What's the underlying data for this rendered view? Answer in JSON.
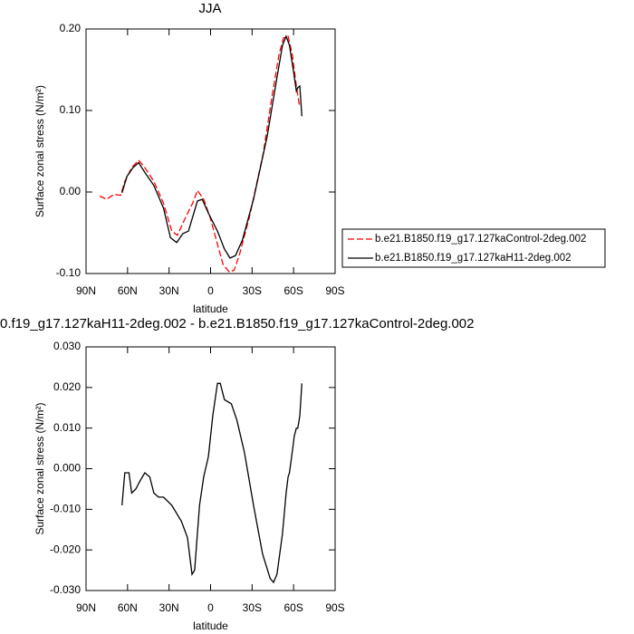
{
  "chart_data": [
    {
      "type": "line",
      "title": "JJA",
      "xlabel": "latitude",
      "ylabel": "Surface zonal stress (N/m²)",
      "xlim": [
        90,
        -90
      ],
      "xticks": [
        {
          "value": 90,
          "label": "90N"
        },
        {
          "value": 60,
          "label": "60N"
        },
        {
          "value": 30,
          "label": "30N"
        },
        0,
        {
          "value": -30,
          "label": "30S"
        },
        {
          "value": -60,
          "label": "60S"
        },
        {
          "value": -90,
          "label": "90S"
        }
      ],
      "ylim": [
        -0.1,
        0.2
      ],
      "yticks": [
        {
          "value": -0.1,
          "label": "-0.10"
        },
        {
          "value": 0,
          "label": "0.00"
        },
        {
          "value": 0.1,
          "label": "0.10"
        },
        {
          "value": 0.2,
          "label": "0.20"
        }
      ],
      "legend": "right",
      "series": [
        {
          "name": "b.e21.B1850.f19_g17.127kaControl-2deg.002",
          "color": "#ff0000",
          "linestyle": "dashed",
          "x": [
            80.2,
            75,
            70,
            65,
            62,
            57,
            52,
            47.5,
            41,
            34,
            28,
            24,
            18,
            13,
            9.5,
            5,
            0.3,
            -5,
            -9,
            -13.5,
            -17,
            -21,
            -28,
            -38,
            -44,
            -49.5,
            -52.7,
            -56,
            -59,
            -62,
            -64,
            -66
          ],
          "values": [
            -0.005,
            -0.009,
            -0.003,
            -0.004,
            0.013,
            0.03,
            0.039,
            0.03,
            0.013,
            -0.014,
            -0.048,
            -0.053,
            -0.031,
            -0.014,
            0.002,
            -0.009,
            -0.031,
            -0.064,
            -0.089,
            -0.098,
            -0.096,
            -0.076,
            -0.031,
            0.047,
            0.113,
            0.169,
            0.189,
            0.191,
            0.169,
            0.13,
            0.108,
            0.108
          ]
        },
        {
          "name": "b.e21.B1850.f19_g17.127kaH11-2deg.002",
          "color": "#000000",
          "linestyle": "solid",
          "x": [
            64,
            60.5,
            56,
            52,
            47.5,
            41,
            34,
            29,
            24.5,
            20,
            16,
            13,
            9.5,
            6,
            1.6,
            -5,
            -10,
            -14,
            -18,
            -23,
            -31,
            -41,
            -47.5,
            -52,
            -54.6,
            -57,
            -60,
            -62,
            -63,
            -64.5,
            -66
          ],
          "values": [
            -0.001,
            0.019,
            0.03,
            0.036,
            0.024,
            0.008,
            -0.02,
            -0.056,
            -0.062,
            -0.051,
            -0.048,
            -0.031,
            -0.011,
            -0.009,
            -0.026,
            -0.048,
            -0.07,
            -0.081,
            -0.078,
            -0.059,
            -0.009,
            0.069,
            0.136,
            0.18,
            0.191,
            0.18,
            0.147,
            0.124,
            0.128,
            0.13,
            0.093
          ]
        }
      ]
    },
    {
      "type": "line",
      "title": "0.f19_g17.127kaH11-2deg.002 - b.e21.B1850.f19_g17.127kaControl-2deg.002",
      "xlabel": "latitude",
      "ylabel": "Surface zonal stress (N/m²)",
      "xlim": [
        90,
        -90
      ],
      "xticks": [
        {
          "value": 90,
          "label": "90N"
        },
        {
          "value": 60,
          "label": "60N"
        },
        {
          "value": 30,
          "label": "30N"
        },
        0,
        {
          "value": -30,
          "label": "30S"
        },
        {
          "value": -60,
          "label": "60S"
        },
        {
          "value": -90,
          "label": "90S"
        }
      ],
      "ylim": [
        -0.03,
        0.03
      ],
      "yticks": [
        {
          "value": -0.03,
          "label": "-0.030"
        },
        {
          "value": -0.02,
          "label": "-0.020"
        },
        {
          "value": -0.01,
          "label": "-0.010"
        },
        {
          "value": 0,
          "label": "0.000"
        },
        {
          "value": 0.01,
          "label": "0.010"
        },
        {
          "value": 0.02,
          "label": "0.020"
        },
        {
          "value": 0.03,
          "label": "0.030"
        }
      ],
      "series": [
        {
          "color": "#000000",
          "linestyle": "solid",
          "x": [
            64,
            62,
            59,
            57,
            54,
            51,
            47.5,
            44,
            41,
            37.6,
            34,
            28,
            21,
            16.7,
            13.4,
            11.5,
            8,
            5,
            1.6,
            -1.6,
            -5,
            -7,
            -10,
            -15,
            -19,
            -24.5,
            -31,
            -37.6,
            -43,
            -45.5,
            -48,
            -52,
            -54.6,
            -56,
            -57,
            -59,
            -60.5,
            -62,
            -63,
            -64.5,
            -66
          ],
          "values": [
            -0.009,
            -0.001,
            -0.001,
            -0.006,
            -0.005,
            -0.003,
            -0.001,
            -0.002,
            -0.006,
            -0.007,
            -0.007,
            -0.009,
            -0.013,
            -0.017,
            -0.026,
            -0.025,
            -0.009,
            -0.002,
            0.003,
            0.013,
            0.021,
            0.021,
            0.017,
            0.016,
            0.012,
            0.004,
            -0.009,
            -0.021,
            -0.027,
            -0.028,
            -0.026,
            -0.016,
            -0.006,
            -0.002,
            -0.001,
            0.004,
            0.008,
            0.01,
            0.01,
            0.013,
            0.021
          ]
        }
      ]
    }
  ]
}
